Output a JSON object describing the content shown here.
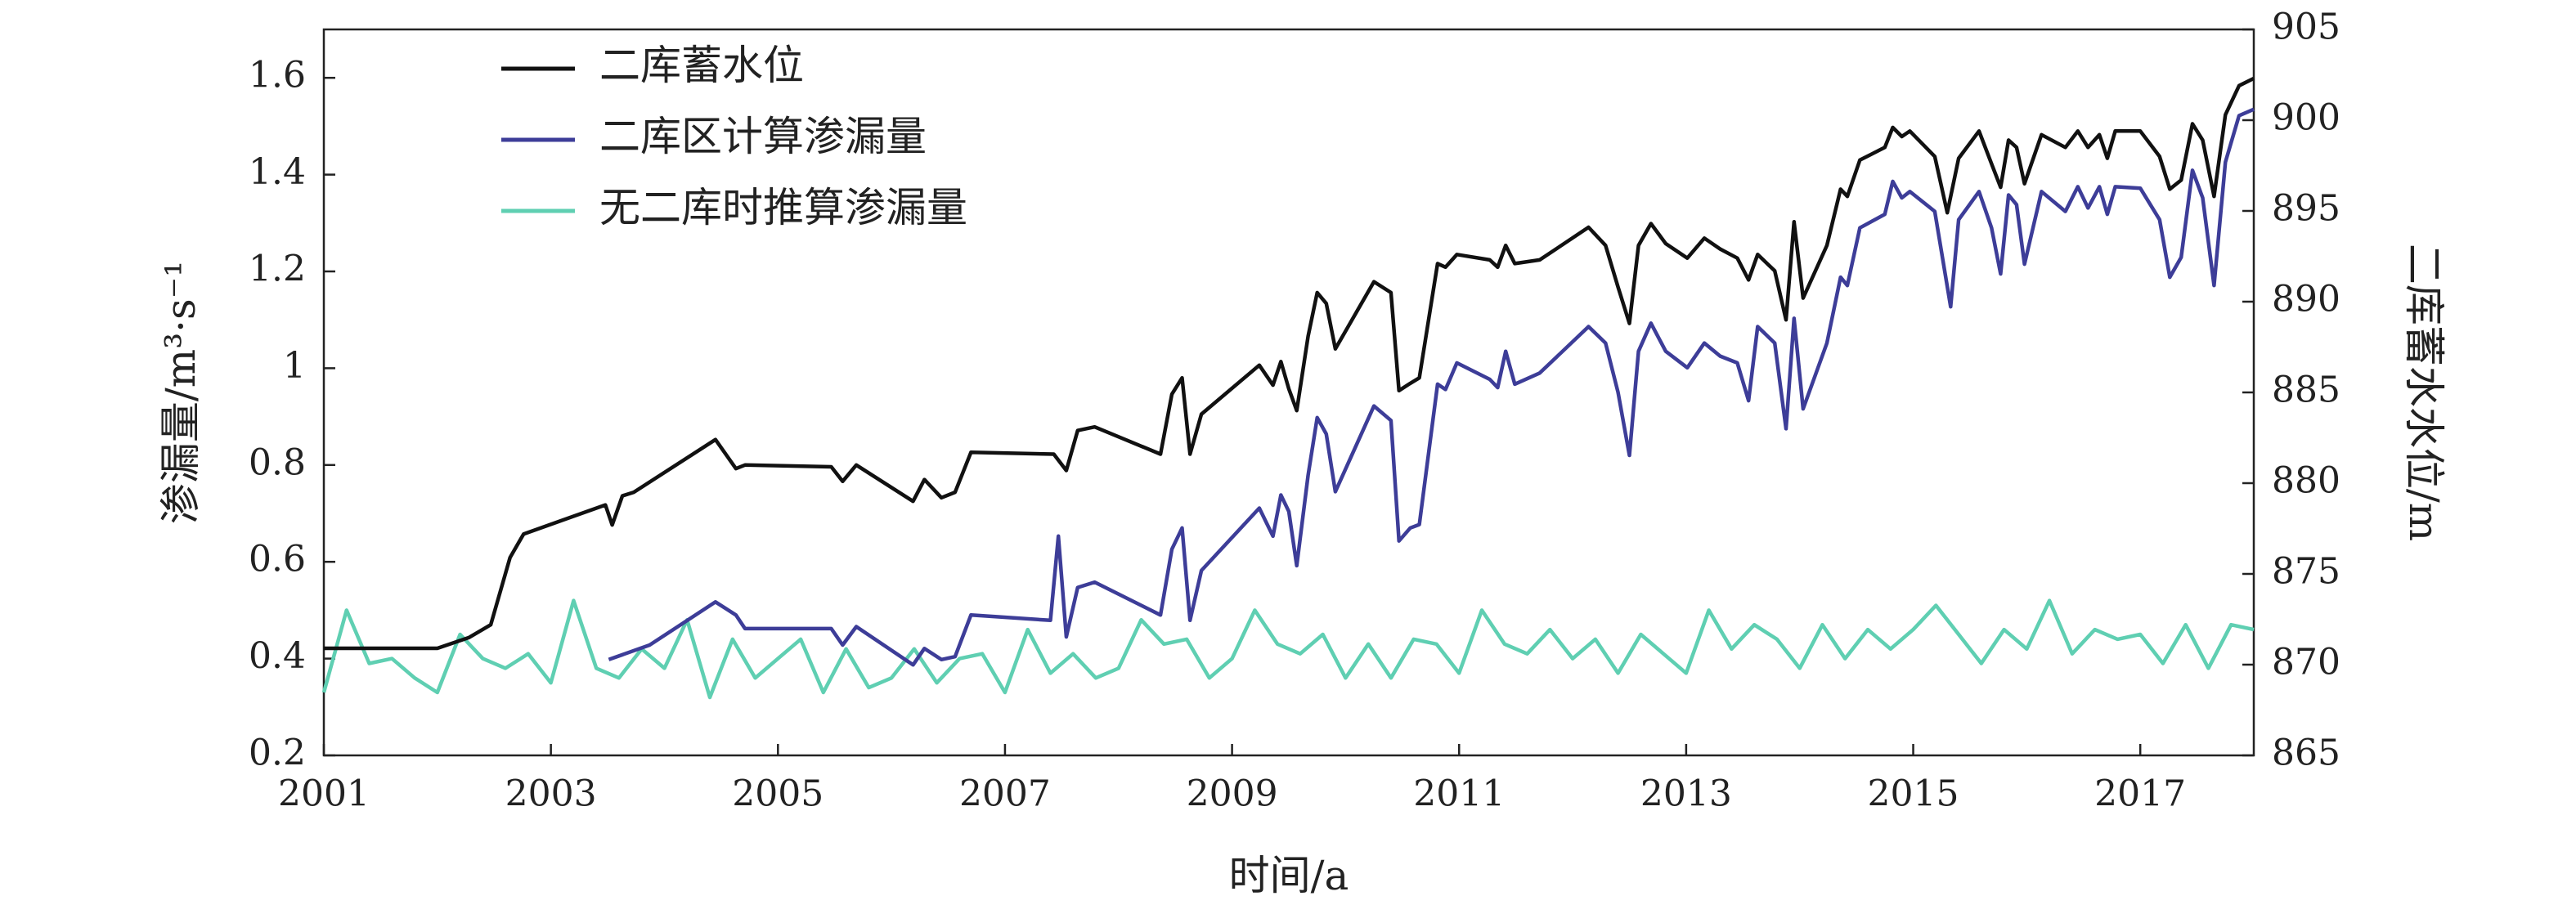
{
  "chart_data": {
    "type": "line",
    "xlabel": "时间/a",
    "ylabel": "渗漏量/m³·s⁻¹",
    "y2label": "二库蓄水水位/m",
    "xlim": [
      2001,
      2018
    ],
    "xticks": [
      2001,
      2003,
      2005,
      2007,
      2009,
      2011,
      2013,
      2015,
      2017
    ],
    "ylim": [
      0.2,
      1.7
    ],
    "yticks": [
      0.2,
      0.4,
      0.6,
      0.8,
      1.0,
      1.2,
      1.4,
      1.6
    ],
    "y2lim": [
      865,
      905
    ],
    "y2ticks": [
      865,
      870,
      875,
      880,
      885,
      890,
      895,
      900,
      905
    ],
    "legend": "upper left",
    "series": [
      {
        "name": "二库蓄水位",
        "color": "#111111",
        "axis": "y2",
        "x": [
          2001.0,
          2002.0,
          2002.28,
          2002.47,
          2002.64,
          2002.76,
          2003.48,
          2003.54,
          2003.63,
          2003.73,
          2004.45,
          2004.63,
          2004.71,
          2005.47,
          2005.57,
          2005.69,
          2006.19,
          2006.29,
          2006.44,
          2006.56,
          2006.7,
          2007.43,
          2007.54,
          2007.64,
          2007.79,
          2008.37,
          2008.47,
          2008.56,
          2008.63,
          2008.73,
          2009.24,
          2009.36,
          2009.43,
          2009.5,
          2009.57,
          2009.67,
          2009.75,
          2009.83,
          2009.91,
          2010.25,
          2010.4,
          2010.47,
          2010.57,
          2010.65,
          2010.81,
          2010.88,
          2010.98,
          2011.27,
          2011.34,
          2011.41,
          2011.49,
          2011.71,
          2012.14,
          2012.29,
          2012.4,
          2012.5,
          2012.58,
          2012.69,
          2012.82,
          2013.01,
          2013.16,
          2013.3,
          2013.45,
          2013.55,
          2013.63,
          2013.78,
          2013.88,
          2013.95,
          2014.03,
          2014.24,
          2014.36,
          2014.42,
          2014.53,
          2014.75,
          2014.82,
          2014.9,
          2014.97,
          2015.19,
          2015.3,
          2015.4,
          2015.58,
          2015.69,
          2015.77,
          2015.84,
          2015.91,
          2015.98,
          2016.13,
          2016.34,
          2016.45,
          2016.54,
          2016.64,
          2016.71,
          2016.78,
          2017.0,
          2017.17,
          2017.26,
          2017.36,
          2017.46,
          2017.55,
          2017.65,
          2017.75,
          2017.87,
          2018.0
        ],
        "values": [
          870.9,
          870.9,
          871.5,
          872.2,
          875.9,
          877.2,
          878.8,
          877.7,
          879.3,
          879.5,
          882.4,
          880.8,
          881.0,
          880.9,
          880.1,
          881.0,
          879.0,
          880.2,
          879.2,
          879.5,
          881.7,
          881.6,
          880.7,
          882.9,
          883.1,
          881.6,
          884.9,
          885.8,
          881.6,
          883.8,
          886.5,
          885.4,
          886.7,
          885.2,
          884.0,
          888.1,
          890.5,
          889.9,
          887.4,
          891.1,
          890.5,
          885.1,
          885.5,
          885.8,
          892.1,
          891.9,
          892.6,
          892.3,
          891.9,
          893.1,
          892.1,
          892.3,
          894.1,
          893.1,
          890.8,
          888.8,
          893.1,
          894.3,
          893.2,
          892.4,
          893.5,
          892.9,
          892.4,
          891.2,
          892.6,
          891.7,
          889.0,
          894.4,
          890.2,
          893.1,
          896.2,
          895.8,
          897.8,
          898.5,
          899.6,
          899.1,
          899.4,
          898.0,
          894.9,
          897.9,
          899.4,
          897.6,
          896.3,
          898.9,
          898.5,
          896.5,
          899.2,
          898.5,
          899.4,
          898.5,
          899.2,
          897.9,
          899.4,
          899.4,
          898.0,
          896.2,
          896.7,
          899.8,
          898.9,
          895.8,
          900.3,
          901.9,
          902.3
        ]
      },
      {
        "name": "二库区计算渗漏量",
        "color": "#3d3d98",
        "x": [
          2003.51,
          2003.87,
          2004.45,
          2004.63,
          2004.71,
          2005.47,
          2005.57,
          2005.69,
          2006.19,
          2006.29,
          2006.44,
          2006.56,
          2006.7,
          2007.4,
          2007.47,
          2007.54,
          2007.64,
          2007.79,
          2008.37,
          2008.47,
          2008.56,
          2008.63,
          2008.73,
          2009.24,
          2009.36,
          2009.43,
          2009.5,
          2009.57,
          2009.67,
          2009.75,
          2009.83,
          2009.91,
          2010.25,
          2010.4,
          2010.47,
          2010.57,
          2010.65,
          2010.81,
          2010.88,
          2010.98,
          2011.27,
          2011.34,
          2011.41,
          2011.49,
          2011.71,
          2012.14,
          2012.29,
          2012.4,
          2012.5,
          2012.58,
          2012.69,
          2012.82,
          2013.01,
          2013.16,
          2013.3,
          2013.45,
          2013.55,
          2013.63,
          2013.78,
          2013.88,
          2013.95,
          2014.03,
          2014.24,
          2014.36,
          2014.42,
          2014.53,
          2014.75,
          2014.82,
          2014.9,
          2014.97,
          2015.19,
          2015.33,
          2015.4,
          2015.58,
          2015.69,
          2015.77,
          2015.84,
          2015.91,
          2015.98,
          2016.13,
          2016.34,
          2016.45,
          2016.54,
          2016.64,
          2016.71,
          2016.78,
          2017.0,
          2017.17,
          2017.26,
          2017.36,
          2017.46,
          2017.55,
          2017.65,
          2017.75,
          2017.87,
          2018.0
        ],
        "values": [
          0.398,
          0.428,
          0.517,
          0.49,
          0.462,
          0.462,
          0.428,
          0.466,
          0.387,
          0.421,
          0.398,
          0.404,
          0.49,
          0.479,
          0.653,
          0.445,
          0.547,
          0.558,
          0.49,
          0.626,
          0.67,
          0.479,
          0.582,
          0.711,
          0.653,
          0.738,
          0.704,
          0.592,
          0.779,
          0.898,
          0.864,
          0.745,
          0.922,
          0.892,
          0.643,
          0.67,
          0.677,
          0.967,
          0.956,
          1.011,
          0.977,
          0.96,
          1.035,
          0.967,
          0.99,
          1.086,
          1.052,
          0.95,
          0.82,
          1.035,
          1.093,
          1.035,
          1.001,
          1.052,
          1.025,
          1.011,
          0.933,
          1.086,
          1.052,
          0.875,
          1.103,
          0.916,
          1.052,
          1.188,
          1.171,
          1.29,
          1.318,
          1.386,
          1.352,
          1.365,
          1.324,
          1.127,
          1.307,
          1.365,
          1.29,
          1.195,
          1.358,
          1.338,
          1.215,
          1.365,
          1.324,
          1.375,
          1.331,
          1.375,
          1.318,
          1.375,
          1.372,
          1.307,
          1.188,
          1.229,
          1.409,
          1.352,
          1.171,
          1.426,
          1.522,
          1.535
        ]
      },
      {
        "name": "无二库时推算渗漏量",
        "color": "#5fcfb2",
        "x": [
          2001.0,
          2001.2,
          2001.4,
          2001.6,
          2001.8,
          2002.0,
          2002.2,
          2002.4,
          2002.6,
          2002.8,
          2003.0,
          2003.2,
          2003.4,
          2003.6,
          2003.8,
          2004.0,
          2004.2,
          2004.4,
          2004.6,
          2004.8,
          2005.0,
          2005.2,
          2005.4,
          2005.6,
          2005.8,
          2006.0,
          2006.2,
          2006.4,
          2006.6,
          2006.8,
          2007.0,
          2007.2,
          2007.4,
          2007.6,
          2007.8,
          2008.0,
          2008.2,
          2008.4,
          2008.6,
          2008.8,
          2009.0,
          2009.2,
          2009.4,
          2009.6,
          2009.8,
          2010.0,
          2010.2,
          2010.4,
          2010.6,
          2010.8,
          2011.0,
          2011.2,
          2011.4,
          2011.6,
          2011.8,
          2012.0,
          2012.2,
          2012.4,
          2012.6,
          2012.8,
          2013.0,
          2013.2,
          2013.4,
          2013.6,
          2013.8,
          2014.0,
          2014.2,
          2014.4,
          2014.6,
          2014.8,
          2015.0,
          2015.2,
          2015.4,
          2015.6,
          2015.8,
          2016.0,
          2016.2,
          2016.4,
          2016.6,
          2016.8,
          2017.0,
          2017.2,
          2017.4,
          2017.6,
          2017.8,
          2018.0
        ],
        "values": [
          0.33,
          0.5,
          0.39,
          0.4,
          0.36,
          0.33,
          0.45,
          0.4,
          0.38,
          0.41,
          0.35,
          0.52,
          0.38,
          0.36,
          0.42,
          0.38,
          0.48,
          0.32,
          0.44,
          0.36,
          0.4,
          0.44,
          0.33,
          0.42,
          0.34,
          0.36,
          0.42,
          0.35,
          0.4,
          0.41,
          0.33,
          0.46,
          0.37,
          0.41,
          0.36,
          0.38,
          0.48,
          0.43,
          0.44,
          0.36,
          0.4,
          0.5,
          0.43,
          0.41,
          0.45,
          0.36,
          0.43,
          0.36,
          0.44,
          0.43,
          0.37,
          0.5,
          0.43,
          0.41,
          0.46,
          0.4,
          0.44,
          0.37,
          0.45,
          0.41,
          0.37,
          0.5,
          0.42,
          0.47,
          0.44,
          0.38,
          0.47,
          0.4,
          0.46,
          0.42,
          0.46,
          0.51,
          0.45,
          0.39,
          0.46,
          0.42,
          0.52,
          0.41,
          0.46,
          0.44,
          0.45,
          0.39,
          0.47,
          0.38,
          0.47,
          0.46
        ]
      }
    ]
  }
}
